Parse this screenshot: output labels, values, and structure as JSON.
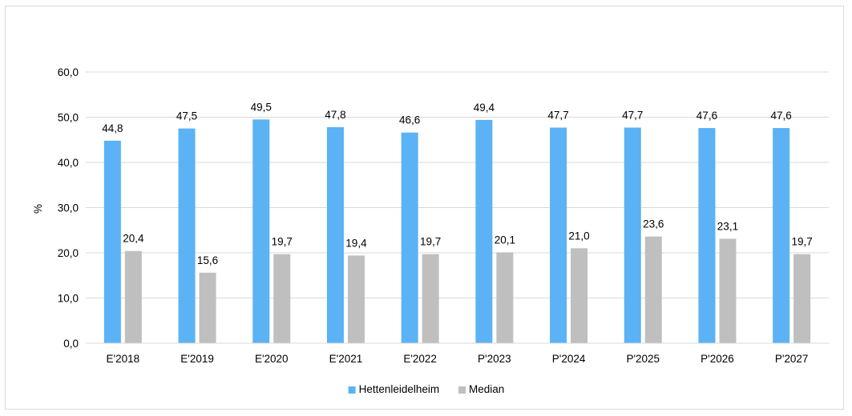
{
  "chart_data": {
    "type": "bar",
    "title": "",
    "xlabel": "",
    "ylabel": "%",
    "ylim": [
      0,
      60
    ],
    "yticks": [
      "0,0",
      "10,0",
      "20,0",
      "30,0",
      "40,0",
      "50,0",
      "60,0"
    ],
    "grid": true,
    "legend_position": "bottom",
    "categories": [
      "E'2018",
      "E'2019",
      "E'2020",
      "E'2021",
      "E'2022",
      "P'2023",
      "P'2024",
      "P'2025",
      "P'2026",
      "P'2027"
    ],
    "series": [
      {
        "name": "Hettenleidelheim",
        "color": "#5bb2f5",
        "values": [
          44.8,
          47.5,
          49.5,
          47.8,
          46.6,
          49.4,
          47.7,
          47.7,
          47.6,
          47.6
        ],
        "labels": [
          "44,8",
          "47,5",
          "49,5",
          "47,8",
          "46,6",
          "49,4",
          "47,7",
          "47,7",
          "47,6",
          "47,6"
        ]
      },
      {
        "name": "Median",
        "color": "#bfbfbf",
        "values": [
          20.4,
          15.6,
          19.7,
          19.4,
          19.7,
          20.1,
          21.0,
          23.6,
          23.1,
          19.7
        ],
        "labels": [
          "20,4",
          "15,6",
          "19,7",
          "19,4",
          "19,7",
          "20,1",
          "21,0",
          "23,6",
          "23,1",
          "19,7"
        ]
      }
    ]
  }
}
